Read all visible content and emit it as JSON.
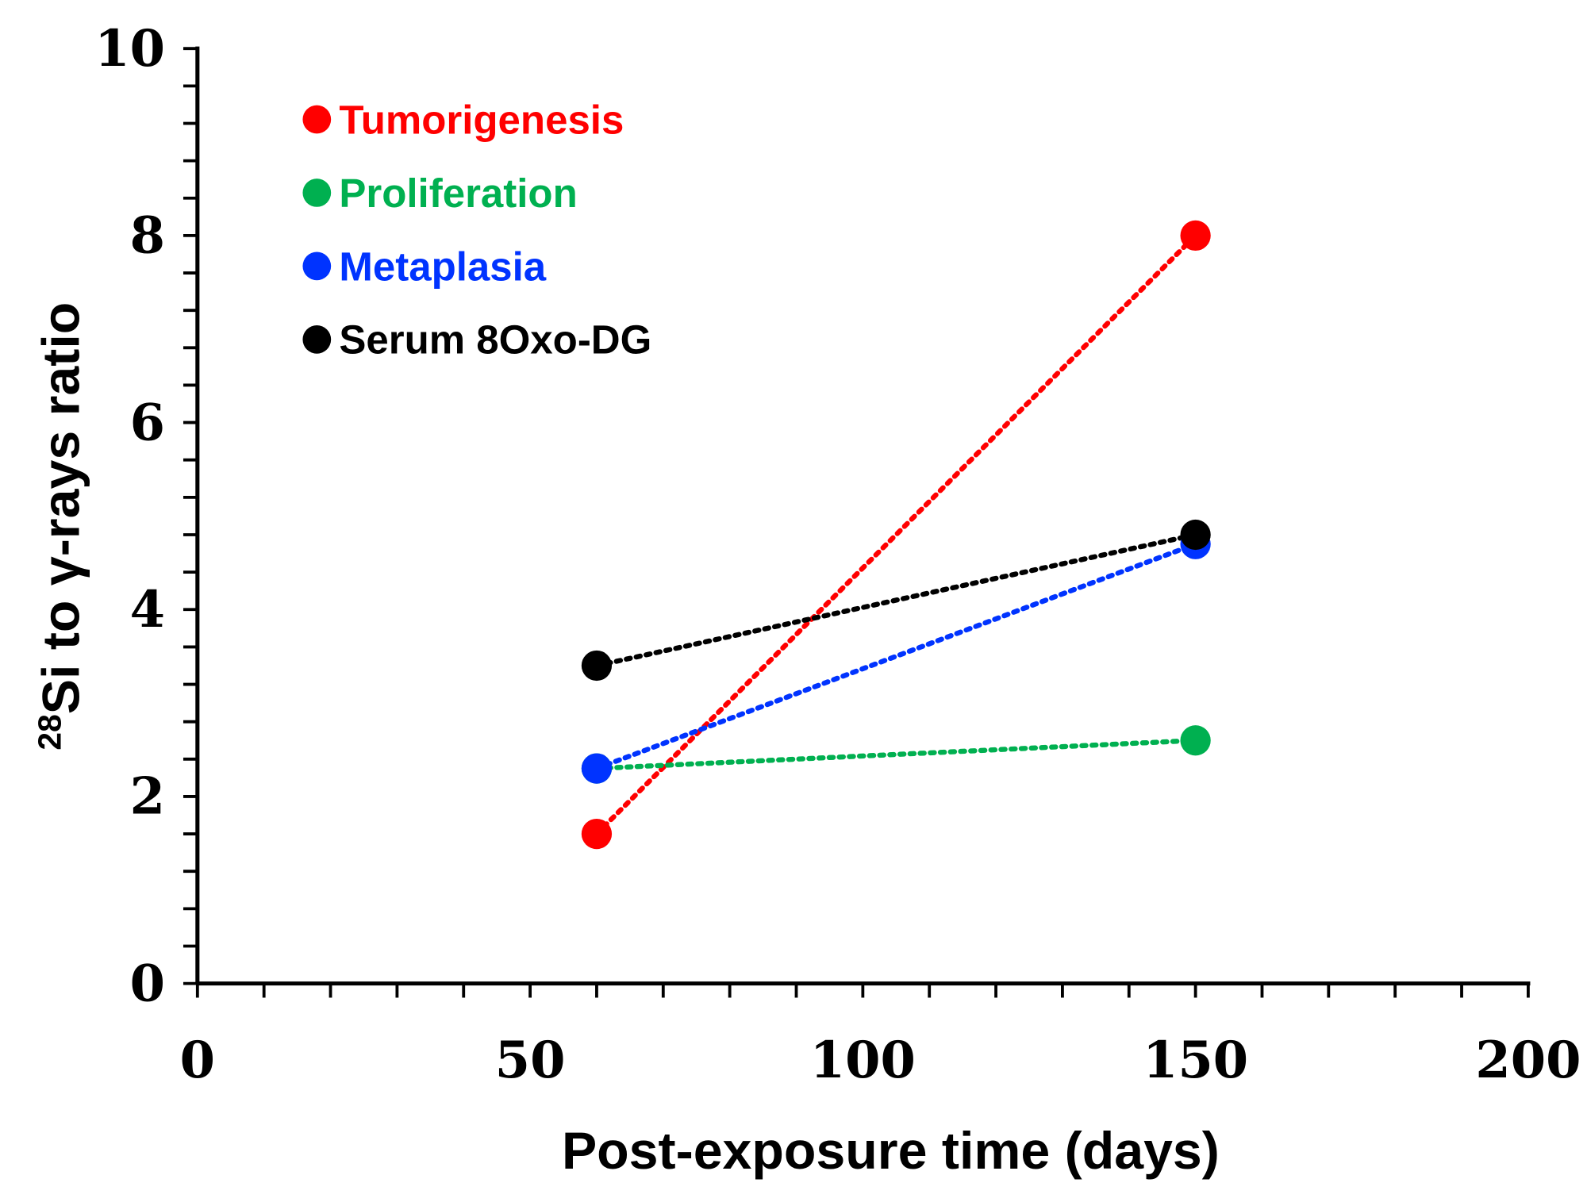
{
  "chart_data": {
    "type": "line",
    "title": "",
    "xlabel": "Post-exposure time (days)",
    "ylabel_sup": "28",
    "ylabel": "Si to γ-rays ratio",
    "xlim": [
      0,
      200
    ],
    "ylim": [
      0,
      10
    ],
    "xticks": [
      0,
      50,
      100,
      150,
      200
    ],
    "yticks": [
      0,
      2,
      4,
      6,
      8,
      10
    ],
    "grid": false,
    "legend_position": "top-left",
    "line_style": "dotted",
    "series": [
      {
        "name": "Tumorigenesis",
        "color": "#ff0000",
        "x": [
          60,
          150
        ],
        "y": [
          1.6,
          8.0
        ]
      },
      {
        "name": "Proliferation",
        "color": "#00b050",
        "x": [
          60,
          150
        ],
        "y": [
          2.3,
          2.6
        ]
      },
      {
        "name": "Metaplasia",
        "color": "#0033ff",
        "x": [
          60,
          150
        ],
        "y": [
          2.3,
          4.7
        ]
      },
      {
        "name": "Serum 8Oxo-DG",
        "color": "#000000",
        "x": [
          60,
          150
        ],
        "y": [
          3.4,
          4.8
        ]
      }
    ]
  }
}
